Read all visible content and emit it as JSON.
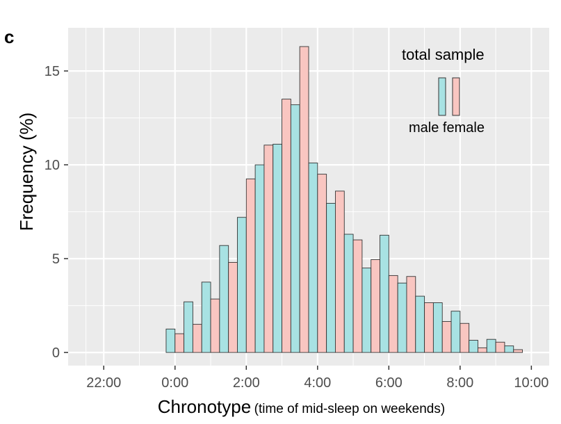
{
  "panel_label": "c",
  "chart_data": {
    "type": "bar",
    "title": "",
    "xlabel_main": "Chronotype",
    "xlabel_sub": "(time of mid-sleep on weekends)",
    "ylabel": "Frequency (%)",
    "x_unit": "hours (24h clock, 22:00 to 10:00)",
    "xlim": [
      -3,
      10.5
    ],
    "ylim": [
      -0.7,
      17.3
    ],
    "x_ticks": [
      -2,
      0,
      2,
      4,
      6,
      8,
      10
    ],
    "x_tick_labels": [
      "22:00",
      "0:00",
      "2:00",
      "4:00",
      "6:00",
      "8:00",
      "10:00"
    ],
    "y_ticks": [
      0,
      5,
      10,
      15
    ],
    "y_tick_labels": [
      "0",
      "5",
      "10",
      "15"
    ],
    "bin_width_hours": 0.5,
    "bin_centers": [
      0,
      0.5,
      1,
      1.5,
      2,
      2.5,
      3,
      3.5,
      4,
      4.5,
      5,
      5.5,
      6,
      6.5,
      7,
      7.5,
      8,
      8.5,
      9,
      9.5
    ],
    "series": [
      {
        "name": "male",
        "color": "#a8e2e3",
        "values": [
          1.25,
          2.7,
          3.75,
          5.7,
          7.2,
          10.0,
          11.1,
          13.2,
          10.1,
          7.95,
          6.3,
          4.5,
          6.25,
          3.7,
          3.0,
          2.65,
          2.2,
          0.65,
          0.7,
          0.35
        ]
      },
      {
        "name": "female",
        "color": "#f9c6c1",
        "values": [
          1.0,
          1.5,
          2.85,
          4.8,
          9.25,
          11.05,
          13.5,
          16.3,
          9.5,
          8.6,
          6.0,
          4.95,
          4.1,
          4.05,
          2.65,
          1.65,
          1.55,
          0.25,
          0.55,
          0.15
        ]
      }
    ],
    "legend": {
      "title": "total sample",
      "labels": [
        "male",
        "female"
      ],
      "position": "top-right"
    },
    "grid": true,
    "panel_background": "#ebebeb",
    "gridline_color": "#ffffff",
    "bar_outline_color": "#333333"
  }
}
